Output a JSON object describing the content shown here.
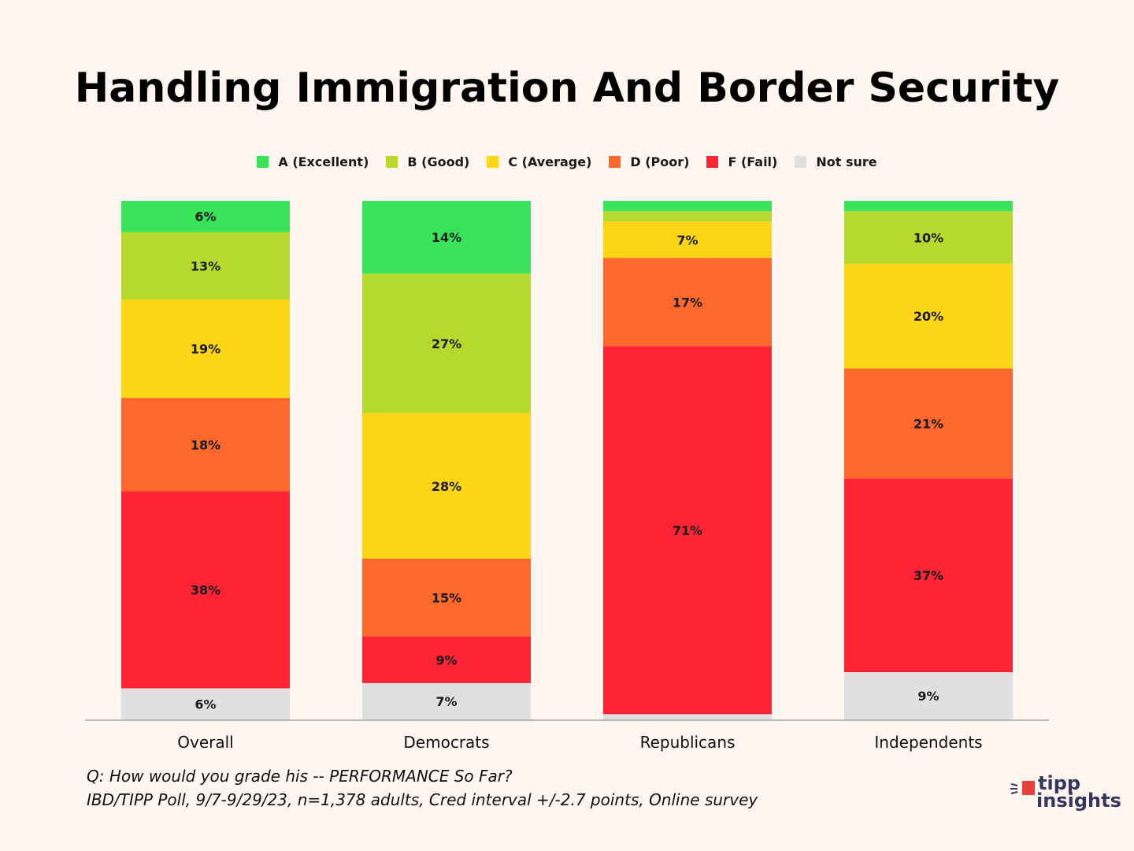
{
  "chart_data": {
    "type": "bar",
    "stacked": true,
    "orientation": "vertical",
    "title": "Handling Immigration And Border Security",
    "xlabel": "",
    "ylabel": "",
    "ylim": [
      0,
      100
    ],
    "grid": false,
    "legend_position": "top-center",
    "categories": [
      "Overall",
      "Democrats",
      "Republicans",
      "Independents"
    ],
    "series": [
      {
        "name": "A (Excellent)",
        "color": "#39e35a",
        "values": [
          6,
          14,
          2,
          2
        ],
        "labels": [
          "6%",
          "14%",
          "",
          ""
        ]
      },
      {
        "name": "B (Good)",
        "color": "#b5d92d",
        "values": [
          13,
          27,
          2,
          10
        ],
        "labels": [
          "13%",
          "27%",
          "",
          "10%"
        ]
      },
      {
        "name": "C (Average)",
        "color": "#fcd615",
        "values": [
          19,
          28,
          7,
          20
        ],
        "labels": [
          "19%",
          "28%",
          "7%",
          "20%"
        ]
      },
      {
        "name": "D (Poor)",
        "color": "#fd682d",
        "values": [
          18,
          15,
          17,
          21
        ],
        "labels": [
          "18%",
          "15%",
          "17%",
          "21%"
        ]
      },
      {
        "name": "F (Fail)",
        "color": "#fd2535",
        "values": [
          38,
          9,
          71,
          37
        ],
        "labels": [
          "38%",
          "9%",
          "71%",
          "37%"
        ]
      },
      {
        "name": "Not sure",
        "color": "#e0e0e0",
        "values": [
          6,
          7,
          1,
          9
        ],
        "labels": [
          "6%",
          "7%",
          "",
          "9%"
        ]
      }
    ]
  },
  "footer": {
    "question": "Q:  How would you grade his -- PERFORMANCE So Far?",
    "source": "IBD/TIPP Poll, 9/7-9/29/23, n=1,378 adults, Cred interval +/-2.7 points, Online survey"
  },
  "logo": {
    "line1": "tipp",
    "line2": "insights",
    "accent_color": "#e8403a",
    "text_color": "#34385a"
  },
  "axis_color": "#b8b8b8"
}
